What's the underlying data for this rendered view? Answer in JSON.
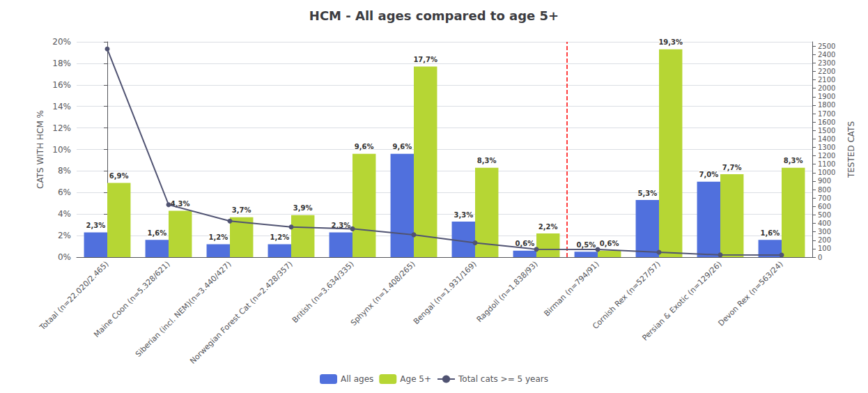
{
  "chart_data": {
    "type": "bar",
    "title": "HCM - All ages compared to age 5+",
    "categories": [
      "Totaal (n=22.020/2.465)",
      "Maine Coon (n=5.328/621)",
      "Siberian (incl. NEM)(n=3.440/427)",
      "Norwegian Forest Cat (n=2.428/357)",
      "British (n=3.634/335)",
      "Sphynx (n=1.408/265)",
      "Bengal (n=1.931/169)",
      "Ragdoll (n=1.838/93)",
      "Birman (n=794/91)",
      "Cornish Rex (n=527/57)",
      "Persian & Exotic (n=129/26)",
      "Devon Rex (n=563/24)"
    ],
    "series": [
      {
        "name": "All ages",
        "type": "bar",
        "values": [
          2.3,
          1.6,
          1.2,
          1.2,
          2.3,
          9.6,
          3.3,
          0.6,
          0.5,
          5.3,
          7.0,
          1.6
        ],
        "value_labels": [
          "2,3%",
          "1,6%",
          "1,2%",
          "1,2%",
          "2,3%",
          "9,6%",
          "3,3%",
          "0,6%",
          "0,5%",
          "5,3%",
          "7,0%",
          "1,6%"
        ]
      },
      {
        "name": "Age 5+",
        "type": "bar",
        "values": [
          6.9,
          4.3,
          3.7,
          3.9,
          9.6,
          17.7,
          8.3,
          2.2,
          0.6,
          19.3,
          7.7,
          8.3
        ],
        "value_labels": [
          "6,9%",
          "4,3%",
          "3,7%",
          "3,9%",
          "9,6%",
          "17,7%",
          "8,3%",
          "2,2%",
          "0,6%",
          "19,3%",
          "7,7%",
          "8,3%"
        ]
      },
      {
        "name": "Total cats >= 5 years",
        "type": "line",
        "marker": "circle",
        "axis": "y2",
        "values": [
          2465,
          621,
          427,
          357,
          335,
          265,
          169,
          93,
          91,
          57,
          26,
          24
        ]
      }
    ],
    "ylabel": "CATS WITH HCM %",
    "y2label": "TESTED CATS",
    "ylim": [
      0,
      20
    ],
    "yticks": [
      {
        "value": 0,
        "label": "0%"
      },
      {
        "value": 2,
        "label": "2%"
      },
      {
        "value": 4,
        "label": "4%"
      },
      {
        "value": 6,
        "label": "6%"
      },
      {
        "value": 8,
        "label": "8%"
      },
      {
        "value": 10,
        "label": "10%"
      },
      {
        "value": 12,
        "label": "12%"
      },
      {
        "value": 14,
        "label": "14%"
      },
      {
        "value": 16,
        "label": "16%"
      },
      {
        "value": 18,
        "label": "18%"
      },
      {
        "value": 20,
        "label": "20%"
      }
    ],
    "y2lim": [
      0,
      2550
    ],
    "y2ticks": [
      0,
      100,
      200,
      300,
      400,
      500,
      600,
      700,
      800,
      900,
      1000,
      1100,
      1200,
      1300,
      1400,
      1500,
      1600,
      1700,
      1800,
      1900,
      2000,
      2100,
      2200,
      2300,
      2400,
      2500
    ],
    "vline": {
      "after": "Ragdoll (n=1.838/93)",
      "color": "red",
      "line_style": "dashed"
    },
    "data_labels": true,
    "grid": true,
    "legend": "bottom"
  }
}
